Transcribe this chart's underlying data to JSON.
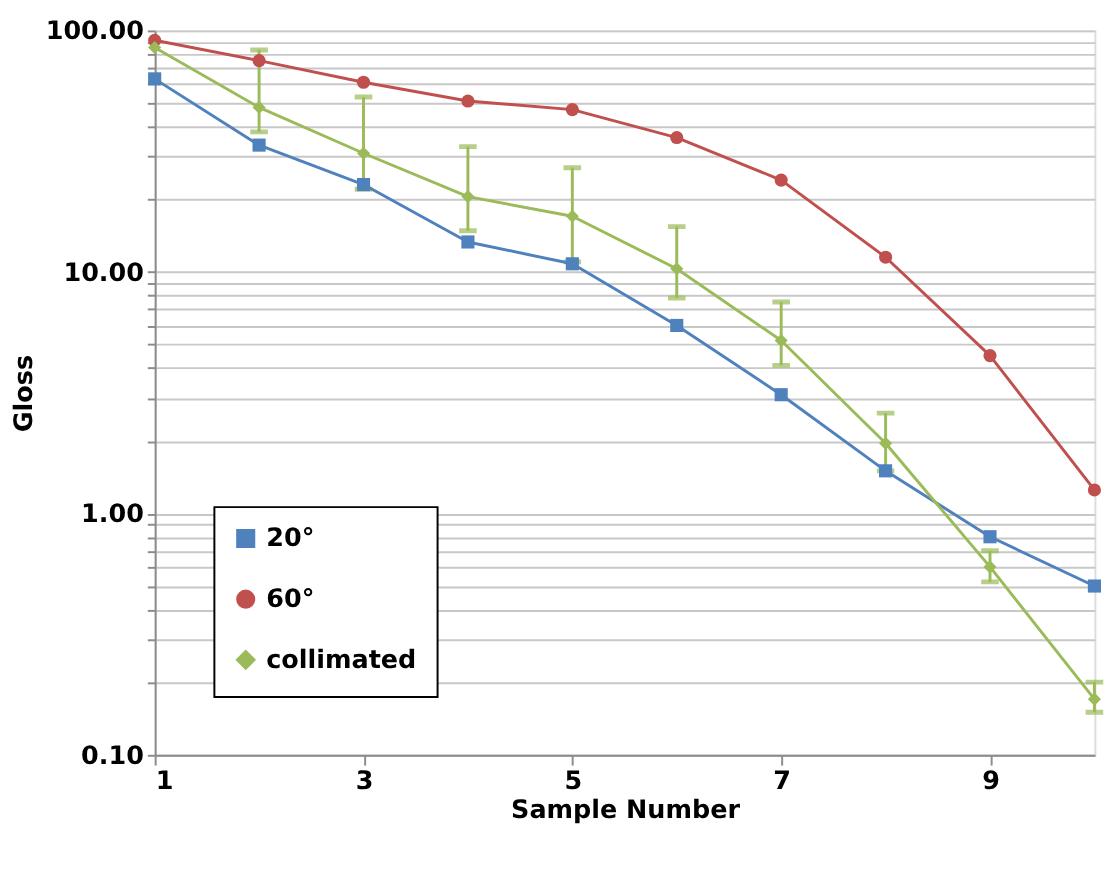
{
  "chart_data": {
    "type": "line",
    "xlabel": "Sample Number",
    "ylabel": "Gloss",
    "x": [
      1,
      2,
      3,
      4,
      5,
      6,
      7,
      8,
      9,
      10
    ],
    "series": [
      {
        "name": "20°",
        "color": "#4f81bd",
        "marker": "square",
        "values": [
          63,
          33.5,
          23,
          13.3,
          10.8,
          6.0,
          3.1,
          1.5,
          0.8,
          0.5
        ]
      },
      {
        "name": "60°",
        "color": "#c0504d",
        "marker": "circle",
        "values": [
          91,
          75,
          61,
          51,
          47,
          36,
          24,
          11.5,
          4.5,
          1.25
        ]
      },
      {
        "name": "collimated",
        "color": "#9bbb59",
        "marker": "diamond",
        "values": [
          85,
          48,
          31,
          20.5,
          17,
          10.3,
          5.2,
          1.95,
          0.6,
          0.17
        ],
        "errors": [
          null,
          [
            38,
            83
          ],
          [
            22,
            53
          ],
          [
            14.8,
            33
          ],
          [
            11,
            27
          ],
          [
            7.8,
            15.4
          ],
          [
            4.1,
            7.5
          ],
          [
            1.5,
            2.6
          ],
          [
            0.52,
            0.7
          ],
          [
            0.15,
            0.2
          ]
        ]
      }
    ],
    "log": "y",
    "xlim": [
      1,
      10
    ],
    "xticks": [
      1,
      3,
      5,
      7,
      9
    ],
    "ylim": [
      0.1,
      100
    ],
    "yticks": [
      {
        "value": 0.1,
        "label": "0.10"
      },
      {
        "value": 0.2,
        "label": null
      },
      {
        "value": 0.3,
        "label": null
      },
      {
        "value": 0.4,
        "label": null
      },
      {
        "value": 0.5,
        "label": null
      },
      {
        "value": 0.6,
        "label": null
      },
      {
        "value": 0.7,
        "label": null
      },
      {
        "value": 0.8,
        "label": null
      },
      {
        "value": 0.9,
        "label": null
      },
      {
        "value": 1,
        "label": "1.00"
      },
      {
        "value": 2,
        "label": null
      },
      {
        "value": 3,
        "label": null
      },
      {
        "value": 4,
        "label": null
      },
      {
        "value": 5,
        "label": null
      },
      {
        "value": 6,
        "label": null
      },
      {
        "value": 7,
        "label": null
      },
      {
        "value": 8,
        "label": null
      },
      {
        "value": 9,
        "label": null
      },
      {
        "value": 10,
        "label": "10.00"
      },
      {
        "value": 20,
        "label": null
      },
      {
        "value": 30,
        "label": null
      },
      {
        "value": 40,
        "label": null
      },
      {
        "value": 50,
        "label": null
      },
      {
        "value": 60,
        "label": null
      },
      {
        "value": 70,
        "label": null
      },
      {
        "value": 80,
        "label": null
      },
      {
        "value": 90,
        "label": null
      },
      {
        "value": 100,
        "label": "100.00"
      }
    ],
    "grid": "y",
    "legend": "bottom left",
    "line_style": "solid"
  }
}
